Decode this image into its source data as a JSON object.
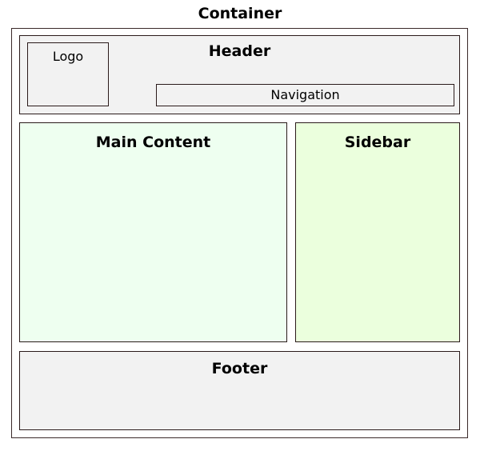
{
  "diagram": {
    "container": {
      "label": "Container",
      "border_color": "#3a2a2a",
      "fill": "#ffffff"
    },
    "header": {
      "label": "Header",
      "border_color": "#2a1a1a",
      "fill": "#f2f2f2"
    },
    "logo": {
      "label": "Logo",
      "border_color": "#2a1a1a",
      "fill": "#f2f2f2"
    },
    "navigation": {
      "label": "Navigation",
      "border_color": "#2a1a1a",
      "fill": "#f2f2f2"
    },
    "main_content": {
      "label": "Main Content",
      "border_color": "#2a1a1a",
      "fill": "#eefff0"
    },
    "sidebar": {
      "label": "Sidebar",
      "border_color": "#2a1a1a",
      "fill": "#ebffdd"
    },
    "footer": {
      "label": "Footer",
      "border_color": "#2a1a1a",
      "fill": "#f2f2f2"
    }
  }
}
